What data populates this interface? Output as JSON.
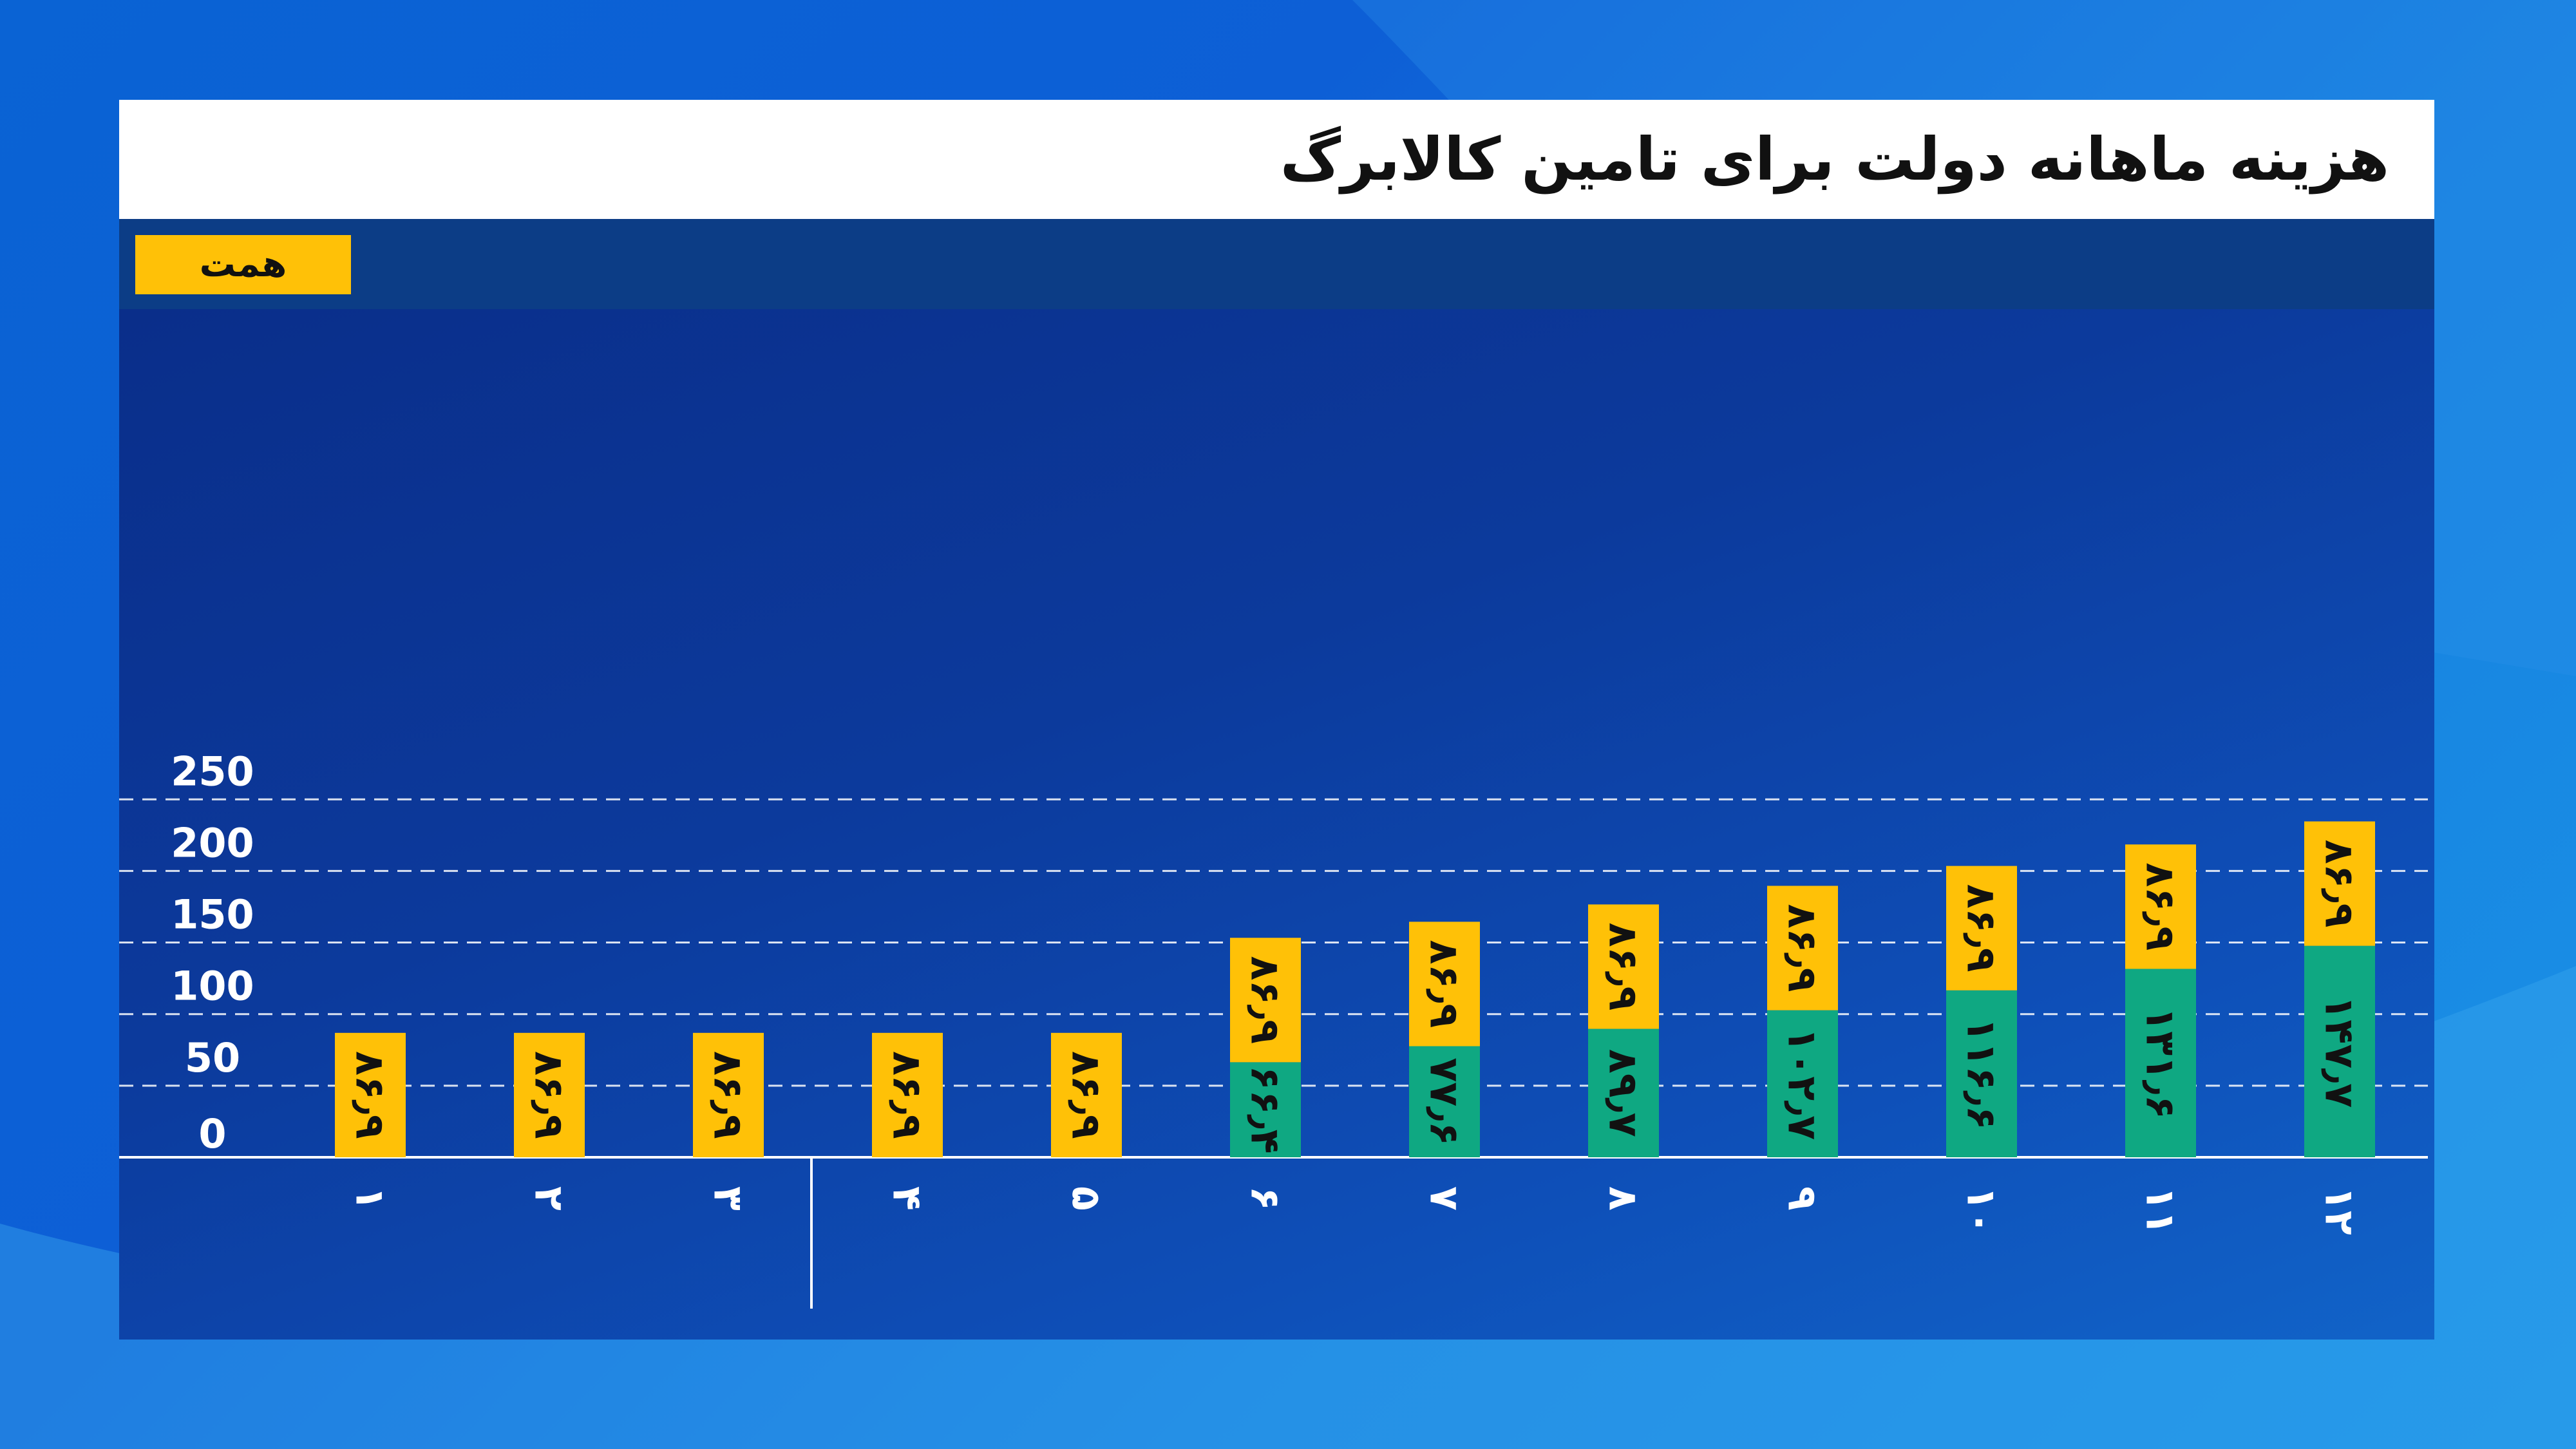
{
  "title": "هزینه ماهانه دولت برای تامین کالابرگ",
  "unit": "همت",
  "colors": {
    "series_green": "#0fa882",
    "series_yellow": "#ffc107",
    "grid": "#ffffff",
    "panel": "#0c3a9c"
  },
  "chart_data": {
    "type": "bar",
    "stacked": true,
    "orientation": "vertical",
    "ylim": [
      0,
      250
    ],
    "yticks": [
      0,
      50,
      100,
      150,
      200,
      250
    ],
    "ytick_labels": [
      "0",
      "50",
      "100",
      "150",
      "200",
      "250"
    ],
    "grid": true,
    "categories": [
      "1",
      "2",
      "3",
      "4",
      "5",
      "6",
      "7",
      "8",
      "9",
      "10",
      "11",
      "12"
    ],
    "category_labels": [
      "۱",
      "۲",
      "۳",
      "۴",
      "۵",
      "۶",
      "۷",
      "۸",
      "۹",
      "۱۰",
      "۱۱",
      "۱۲"
    ],
    "series": [
      {
        "color": "#0fa882",
        "values": [
          0,
          0,
          0,
          0,
          0,
          66.4,
          77.6,
          89.7,
          102.7,
          116.6,
          131.6,
          147.7
        ],
        "labels": [
          "",
          "",
          "",
          "",
          "",
          "۶۶٫۴",
          "۷۷٫۶",
          "۸۹٫۷",
          "۱۰۲٫۷",
          "۱۱۶٫۶",
          "۱۳۱٫۶",
          "۱۴۷٫۷"
        ]
      },
      {
        "color": "#ffc107",
        "values": [
          86.9,
          86.9,
          86.9,
          86.9,
          86.9,
          86.9,
          86.9,
          86.9,
          86.9,
          86.9,
          86.9,
          86.9
        ],
        "labels": [
          "۸۶٫۹",
          "۸۶٫۹",
          "۸۶٫۹",
          "۸۶٫۹",
          "۸۶٫۹",
          "۸۶٫۹",
          "۸۶٫۹",
          "۸۶٫۹",
          "۸۶٫۹",
          "۸۶٫۹",
          "۸۶٫۹",
          "۸۶٫۹"
        ]
      }
    ],
    "separator_after_category": "3"
  }
}
